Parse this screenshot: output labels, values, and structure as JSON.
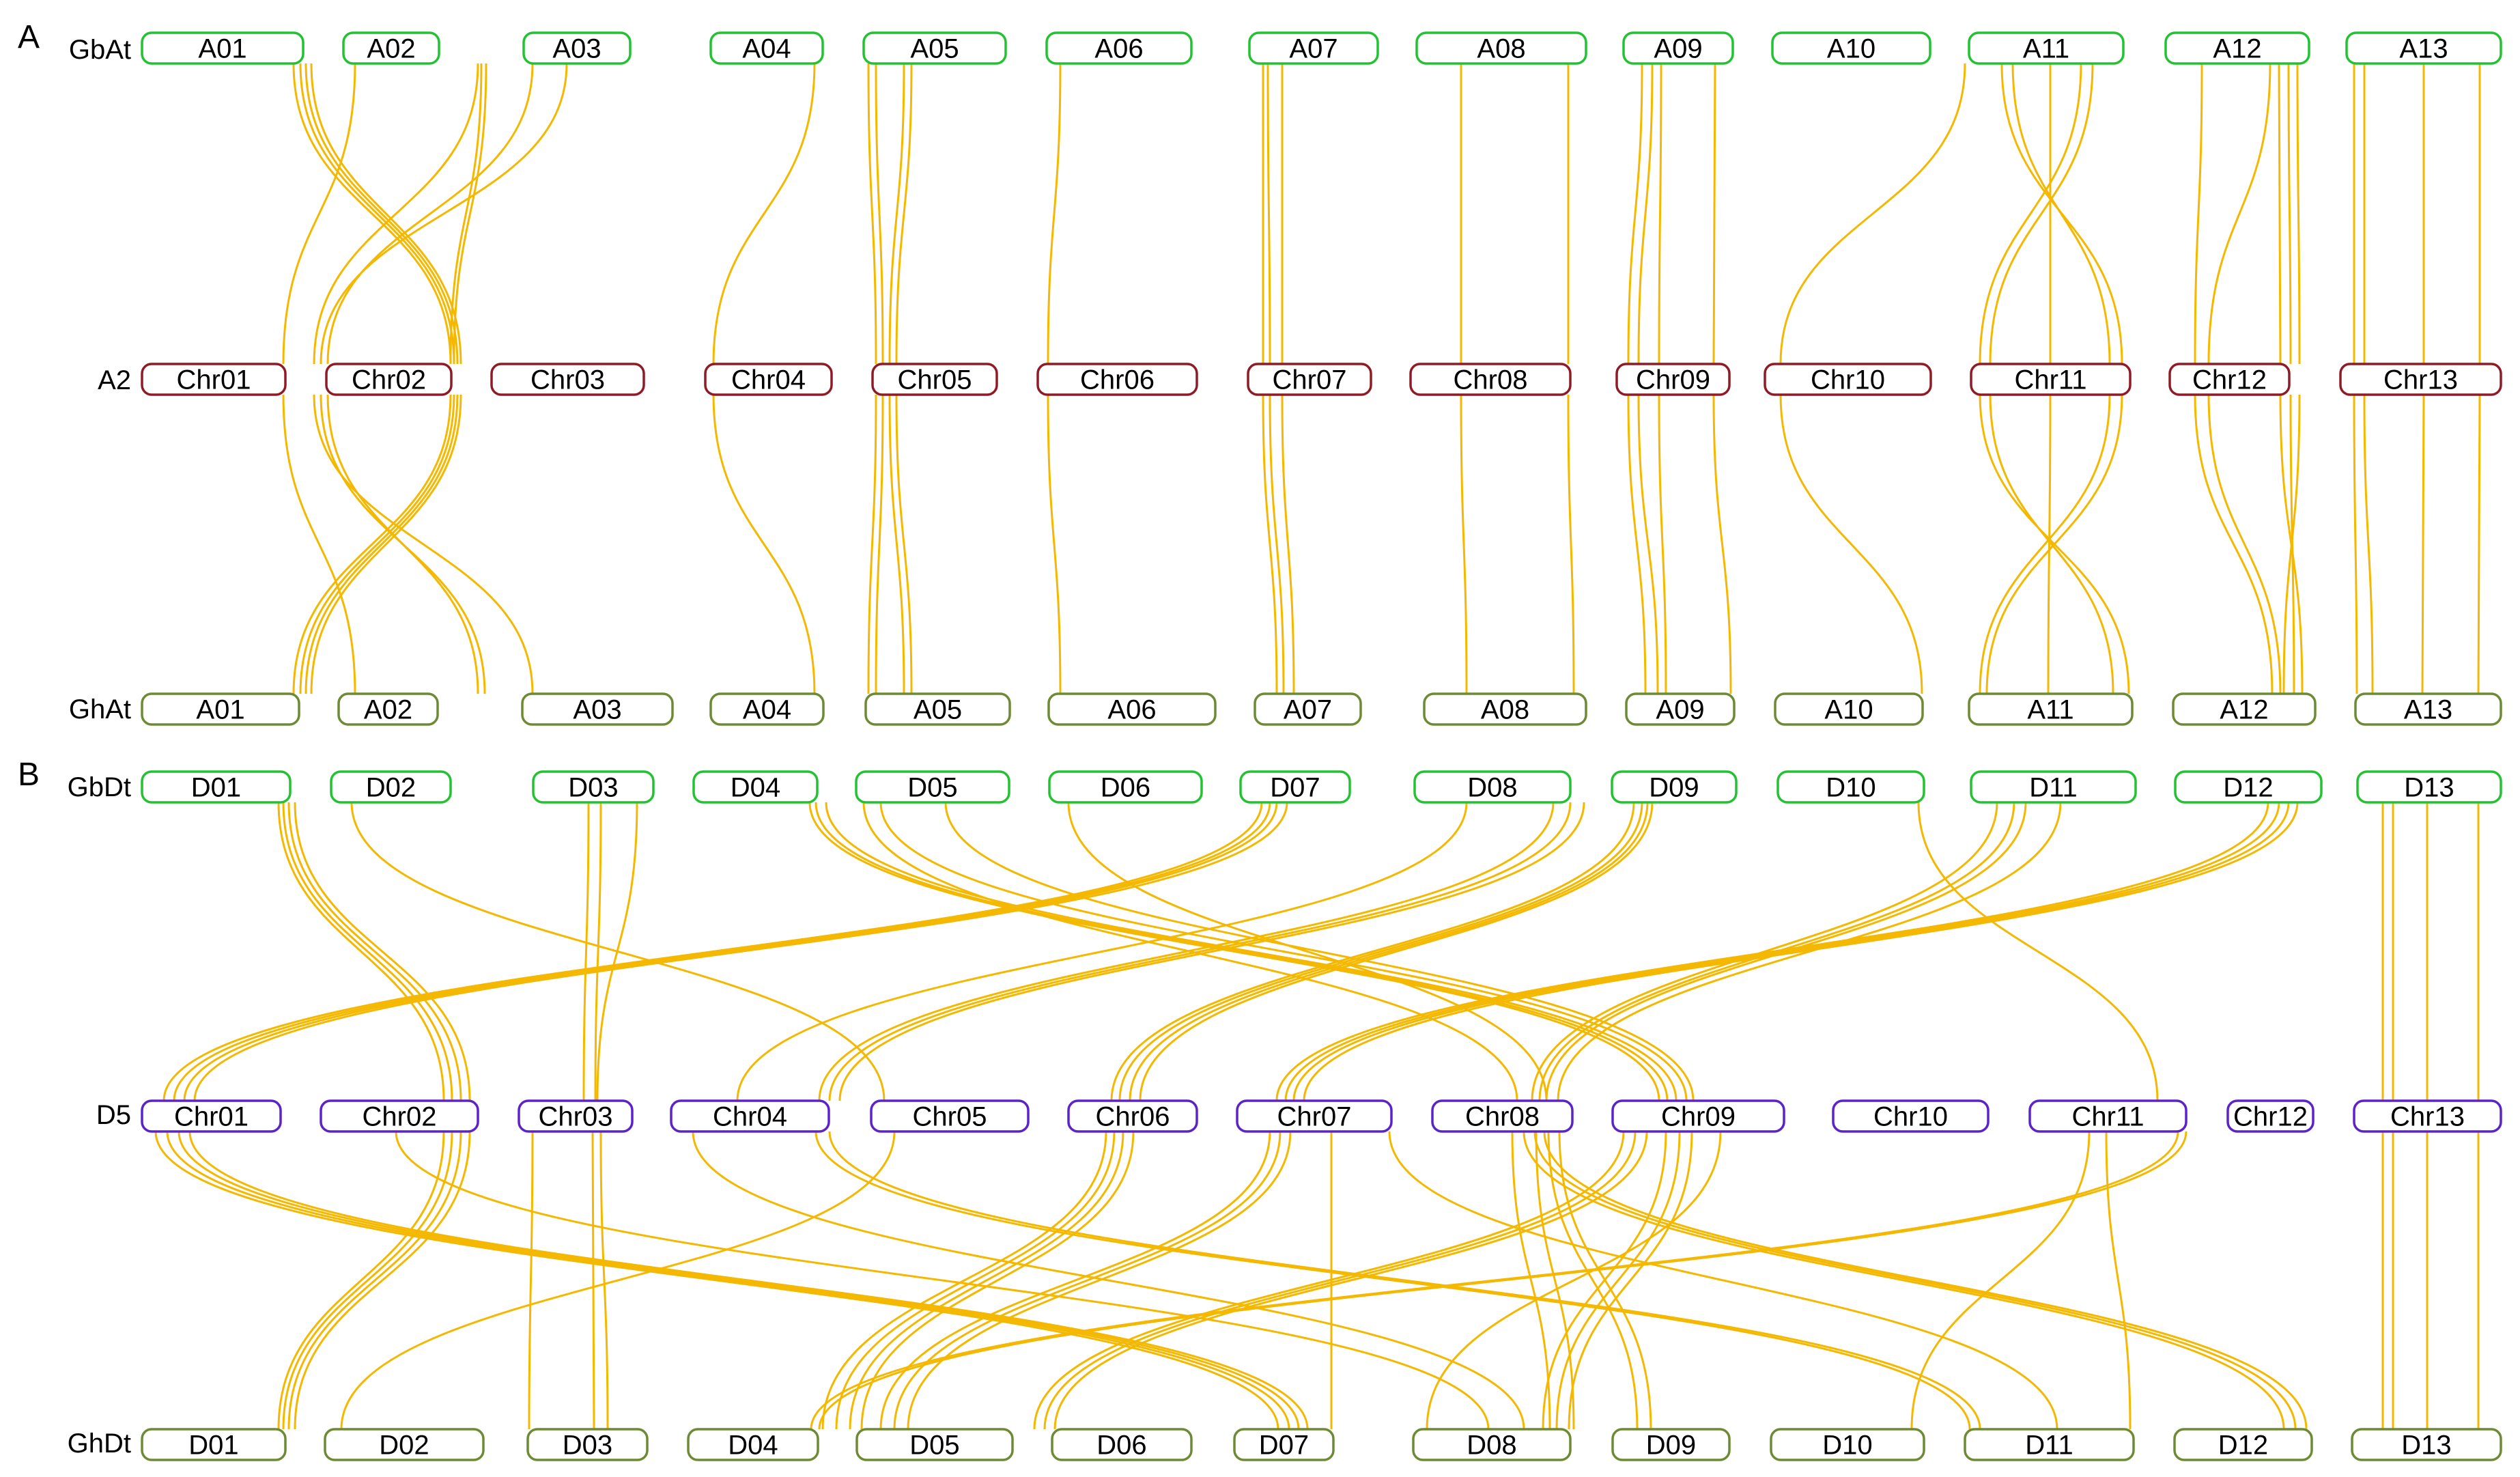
{
  "panels": [
    {
      "letter": "A",
      "rows": [
        {
          "label": "GbAt",
          "color": "#22c232",
          "chromosomes": [
            "A01",
            "A02",
            "A03",
            "A04",
            "A05",
            "A06",
            "A07",
            "A08",
            "A09",
            "A10",
            "A11",
            "A12",
            "A13"
          ]
        },
        {
          "label": "A2",
          "color": "#8e1b25",
          "chromosomes": [
            "Chr01",
            "Chr02",
            "Chr03",
            "Chr04",
            "Chr05",
            "Chr06",
            "Chr07",
            "Chr08",
            "Chr09",
            "Chr10",
            "Chr11",
            "Chr12",
            "Chr13"
          ]
        },
        {
          "label": "GhAt",
          "color": "#6d8a34",
          "chromosomes": [
            "A01",
            "A02",
            "A03",
            "A04",
            "A05",
            "A06",
            "A07",
            "A08",
            "A09",
            "A10",
            "A11",
            "A12",
            "A13"
          ]
        }
      ]
    },
    {
      "letter": "B",
      "rows": [
        {
          "label": "GbDt",
          "color": "#22c232",
          "chromosomes": [
            "D01",
            "D02",
            "D03",
            "D04",
            "D05",
            "D06",
            "D07",
            "D08",
            "D09",
            "D10",
            "D11",
            "D12",
            "D13"
          ]
        },
        {
          "label": "D5",
          "color": "#5b23c9",
          "chromosomes": [
            "Chr01",
            "Chr02",
            "Chr03",
            "Chr04",
            "Chr05",
            "Chr06",
            "Chr07",
            "Chr08",
            "Chr09",
            "Chr10",
            "Chr11",
            "Chr12",
            "Chr13"
          ]
        },
        {
          "label": "GhDt",
          "color": "#6d8a34",
          "chromosomes": [
            "D01",
            "D02",
            "D03",
            "D04",
            "D05",
            "D06",
            "D07",
            "D08",
            "D09",
            "D10",
            "D11",
            "D12",
            "D13"
          ]
        }
      ]
    }
  ],
  "link_color": "#f5b800"
}
